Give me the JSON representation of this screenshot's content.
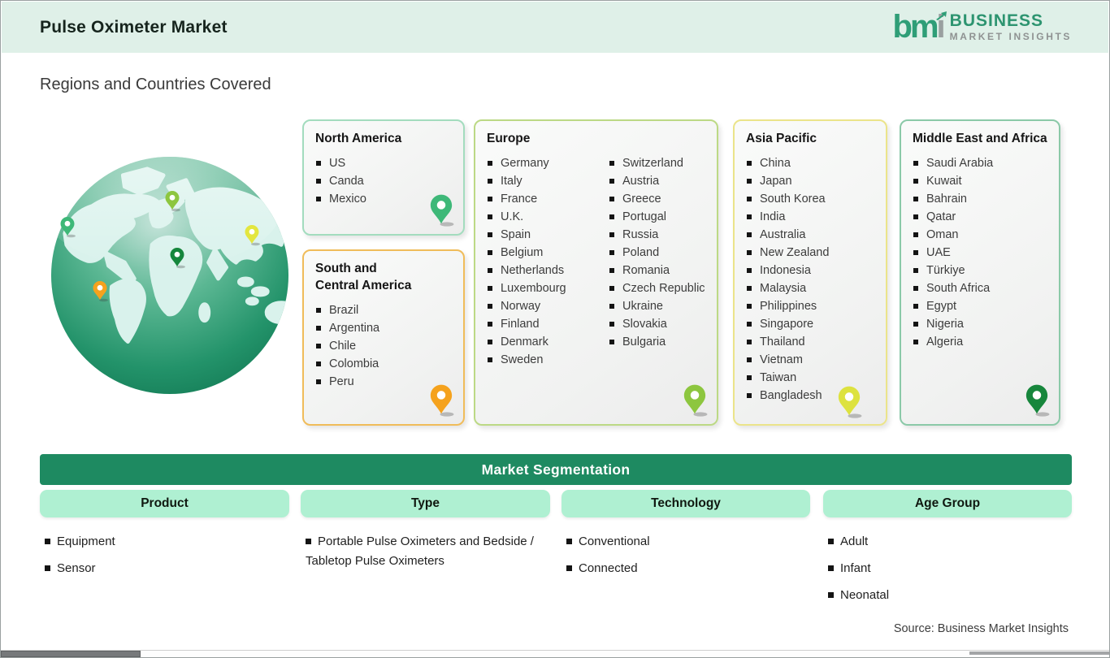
{
  "header": {
    "title": "Pulse Oximeter Market",
    "logo": {
      "mark_green": "bm",
      "mark_gray": "i",
      "line1": "BUSINESS",
      "line2": "MARKET  INSIGHTS"
    }
  },
  "subtitle": "Regions and Countries Covered",
  "regions": [
    {
      "id": "north-america",
      "title": "North America",
      "countries": [
        "US",
        "Canda",
        "Mexico"
      ],
      "colors": {
        "border": "#a3dcbe",
        "pin": "#3eb878"
      }
    },
    {
      "id": "south-central-america",
      "title": "South and\nCentral America",
      "countries": [
        "Brazil",
        "Argentina",
        "Chile",
        "Colombia",
        "Peru"
      ],
      "colors": {
        "border": "#f0bc5a",
        "pin": "#f5a21d"
      }
    },
    {
      "id": "europe",
      "title": "Europe",
      "countries_col1": [
        "Germany",
        "Italy",
        "France",
        "U.K.",
        "Spain",
        "Belgium",
        "Netherlands",
        "Luxembourg",
        "Norway",
        "Finland",
        "Denmark",
        "Sweden"
      ],
      "countries_col2": [
        "Switzerland",
        "Austria",
        "Greece",
        "Portugal",
        "Russia",
        "Poland",
        "Romania",
        "Czech Republic",
        "Ukraine",
        "Slovakia",
        "Bulgaria"
      ],
      "colors": {
        "border": "#bcd985",
        "pin": "#8dc63f"
      }
    },
    {
      "id": "asia-pacific",
      "title": "Asia Pacific",
      "countries": [
        "China",
        "Japan",
        "South Korea",
        "India",
        "Australia",
        "New Zealand",
        "Indonesia",
        "Malaysia",
        "Philippines",
        "Singapore",
        "Thailand",
        "Vietnam",
        "Taiwan",
        "Bangladesh"
      ],
      "colors": {
        "border": "#ebe48a",
        "pin": "#dde23f"
      }
    },
    {
      "id": "middle-east-africa",
      "title": "Middle East and Africa",
      "countries": [
        "Saudi Arabia",
        "Kuwait",
        "Bahrain",
        "Qatar",
        "Oman",
        "UAE",
        "Türkiye",
        "South Africa",
        "Egypt",
        "Nigeria",
        "Algeria"
      ],
      "colors": {
        "border": "#8bc9a8",
        "pin": "#17863c"
      }
    }
  ],
  "globe": {
    "pins": [
      {
        "name": "north-america",
        "color": "#3eb878"
      },
      {
        "name": "europe",
        "color": "#8dc63f"
      },
      {
        "name": "asia",
        "color": "#e3e63f"
      },
      {
        "name": "middle-east",
        "color": "#15863c"
      },
      {
        "name": "south-america",
        "color": "#f5a21d"
      }
    ],
    "ocean_color": "#2e9e72",
    "land_color": "#d9f2ec"
  },
  "segmentation": {
    "banner": "Market Segmentation",
    "columns": [
      {
        "label": "Product",
        "items": [
          "Equipment",
          "Sensor"
        ]
      },
      {
        "label": "Type",
        "items": [
          "Portable Pulse Oximeters and Bedside / Tabletop Pulse Oximeters"
        ]
      },
      {
        "label": "Technology",
        "items": [
          "Conventional",
          "Connected"
        ]
      },
      {
        "label": "Age Group",
        "items": [
          "Adult",
          "Infant",
          "Neonatal"
        ]
      }
    ]
  },
  "source": "Source: Business Market Insights"
}
